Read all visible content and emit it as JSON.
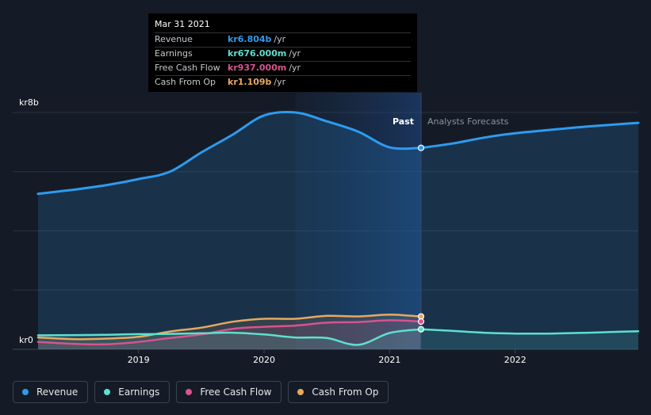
{
  "tooltip": {
    "date": "Mar 31 2021",
    "rows": [
      {
        "label": "Revenue",
        "value": "kr6.804b",
        "unit": "/yr",
        "color": "#2e9bf0"
      },
      {
        "label": "Earnings",
        "value": "kr676.000m",
        "unit": "/yr",
        "color": "#5ee0cd"
      },
      {
        "label": "Free Cash Flow",
        "value": "kr937.000m",
        "unit": "/yr",
        "color": "#d8538e"
      },
      {
        "label": "Cash From Op",
        "value": "kr1.109b",
        "unit": "/yr",
        "color": "#e8a860"
      }
    ]
  },
  "legend": [
    {
      "label": "Revenue",
      "color": "#2e9bf0"
    },
    {
      "label": "Earnings",
      "color": "#5ee0cd"
    },
    {
      "label": "Free Cash Flow",
      "color": "#d8538e"
    },
    {
      "label": "Cash From Op",
      "color": "#e8a860"
    }
  ],
  "chart_data": {
    "type": "area",
    "x_unit": "year",
    "y_unit": "SEK",
    "ylim": [
      0,
      8000000000
    ],
    "xlim": [
      2018.2,
      2022.98
    ],
    "x_ticks": [
      2019,
      2020,
      2021,
      2022
    ],
    "x_tick_labels": [
      "2019",
      "2020",
      "2021",
      "2022"
    ],
    "y_tick_labels": {
      "top": "kr8b",
      "bottom": "kr0"
    },
    "y_gridlines": [
      0,
      2000000000,
      4000000000,
      6000000000,
      8000000000
    ],
    "past_label": "Past",
    "forecast_label": "Analysts Forecasts",
    "divider_x": 2021.25,
    "highlight_start_x": 2020.25,
    "colors": {
      "revenue": "#2e9bf0",
      "earnings": "#5ee0cd",
      "fcf": "#d8538e",
      "cfo": "#e8a860"
    },
    "series": [
      {
        "name": "Revenue",
        "key": "revenue",
        "past": [
          [
            2018.2,
            5250000000
          ],
          [
            2018.5,
            5400000000
          ],
          [
            2018.75,
            5550000000
          ],
          [
            2019.0,
            5750000000
          ],
          [
            2019.25,
            6000000000
          ],
          [
            2019.5,
            6650000000
          ],
          [
            2019.75,
            7250000000
          ],
          [
            2020.0,
            7900000000
          ],
          [
            2020.25,
            8000000000
          ],
          [
            2020.5,
            7700000000
          ],
          [
            2020.75,
            7350000000
          ],
          [
            2021.0,
            6820000000
          ],
          [
            2021.25,
            6804000000
          ]
        ],
        "forecast": [
          [
            2021.25,
            6804000000
          ],
          [
            2021.5,
            6950000000
          ],
          [
            2021.75,
            7150000000
          ],
          [
            2022.0,
            7300000000
          ],
          [
            2022.25,
            7400000000
          ],
          [
            2022.5,
            7500000000
          ],
          [
            2022.75,
            7580000000
          ],
          [
            2022.98,
            7650000000
          ]
        ]
      },
      {
        "name": "Earnings",
        "key": "earnings",
        "past": [
          [
            2018.2,
            470000000
          ],
          [
            2018.5,
            480000000
          ],
          [
            2018.75,
            490000000
          ],
          [
            2019.0,
            510000000
          ],
          [
            2019.25,
            520000000
          ],
          [
            2019.5,
            540000000
          ],
          [
            2019.75,
            560000000
          ],
          [
            2020.0,
            500000000
          ],
          [
            2020.25,
            400000000
          ],
          [
            2020.5,
            380000000
          ],
          [
            2020.75,
            150000000
          ],
          [
            2021.0,
            550000000
          ],
          [
            2021.25,
            676000000
          ]
        ],
        "forecast": [
          [
            2021.25,
            676000000
          ],
          [
            2021.5,
            620000000
          ],
          [
            2021.75,
            560000000
          ],
          [
            2022.0,
            530000000
          ],
          [
            2022.25,
            530000000
          ],
          [
            2022.5,
            550000000
          ],
          [
            2022.75,
            580000000
          ],
          [
            2022.98,
            610000000
          ]
        ]
      },
      {
        "name": "Free Cash Flow",
        "key": "fcf",
        "past": [
          [
            2018.2,
            250000000
          ],
          [
            2018.5,
            180000000
          ],
          [
            2018.75,
            170000000
          ],
          [
            2019.0,
            250000000
          ],
          [
            2019.25,
            380000000
          ],
          [
            2019.5,
            500000000
          ],
          [
            2019.75,
            690000000
          ],
          [
            2020.0,
            760000000
          ],
          [
            2020.25,
            800000000
          ],
          [
            2020.5,
            900000000
          ],
          [
            2020.75,
            920000000
          ],
          [
            2021.0,
            980000000
          ],
          [
            2021.25,
            937000000
          ]
        ]
      },
      {
        "name": "Cash From Op",
        "key": "cfo",
        "past": [
          [
            2018.2,
            400000000
          ],
          [
            2018.5,
            340000000
          ],
          [
            2018.75,
            360000000
          ],
          [
            2019.0,
            420000000
          ],
          [
            2019.25,
            600000000
          ],
          [
            2019.5,
            730000000
          ],
          [
            2019.75,
            930000000
          ],
          [
            2020.0,
            1030000000
          ],
          [
            2020.25,
            1030000000
          ],
          [
            2020.5,
            1130000000
          ],
          [
            2020.75,
            1110000000
          ],
          [
            2021.0,
            1170000000
          ],
          [
            2021.25,
            1109000000
          ]
        ]
      }
    ]
  }
}
